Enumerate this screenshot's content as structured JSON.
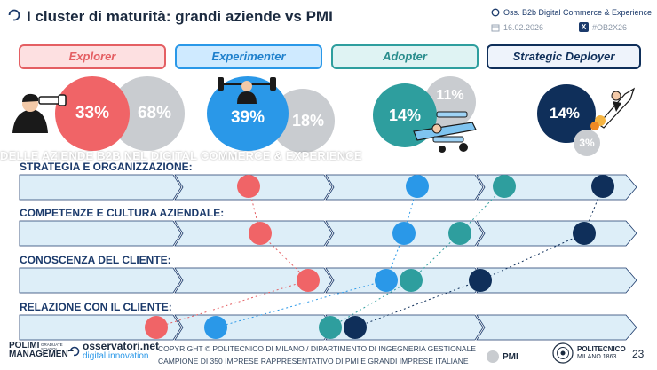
{
  "header": {
    "title": "I cluster di maturità: grandi aziende vs PMI",
    "source": "Oss. B2b Digital Commerce & Experience",
    "date": "16.02.2026",
    "hashtag": "#OB2X26"
  },
  "clusters": [
    {
      "name": "Explorer",
      "large_pct": "33%",
      "pmi_pct": "68%",
      "color": "#f06467",
      "bg": "#fde0e1",
      "border": "#e45f63"
    },
    {
      "name": "Experimenter",
      "large_pct": "39%",
      "pmi_pct": "18%",
      "color": "#2a98e8",
      "bg": "#cfeaff",
      "border": "#2a98e8"
    },
    {
      "name": "Adopter",
      "large_pct": "14%",
      "pmi_pct": "11%",
      "color": "#2e9e9e",
      "bg": "#dff3f3",
      "border": "#2e9e9e"
    },
    {
      "name": "Strategic Deployer",
      "large_pct": "14%",
      "pmi_pct": "3%",
      "color": "#0f2f5a",
      "bg": "#eef3fb",
      "border": "#0f2f5a"
    }
  ],
  "overlay_text": "DELLE AZIENDE B2B NEL DIGITAL COMMERCE & EXPERIENCE",
  "dimensions": [
    {
      "label": "STRATEGIA E ORGANIZZAZIONE:"
    },
    {
      "label": "COMPETENZE E CULTURA AZIENDALE:"
    },
    {
      "label": "CONOSCENZA DEL CLIENTE:"
    },
    {
      "label": "RELAZIONE CON IL CLIENTE:"
    }
  ],
  "footer": {
    "brand1_line1": "POLIMI",
    "brand1_line2": "MANAGEMENT",
    "brand1_small": "GRADUATE SCHOOL OF",
    "brand2_line1": "osservatori.net",
    "brand2_line2": "digital innovation",
    "copyright": "COPYRIGHT © POLITECNICO DI MILANO / DIPARTIMENTO DI INGEGNERIA GESTIONALE",
    "sample": "CAMPIONE DI 350 IMPRESE RAPPRESENTATIVO DI PMI E GRANDI IMPRESE ITALIANE",
    "legend_pmi": "PMI",
    "uni_line1": "POLITECNICO",
    "uni_line2": "MILANO 1863",
    "page_number": "23"
  }
}
